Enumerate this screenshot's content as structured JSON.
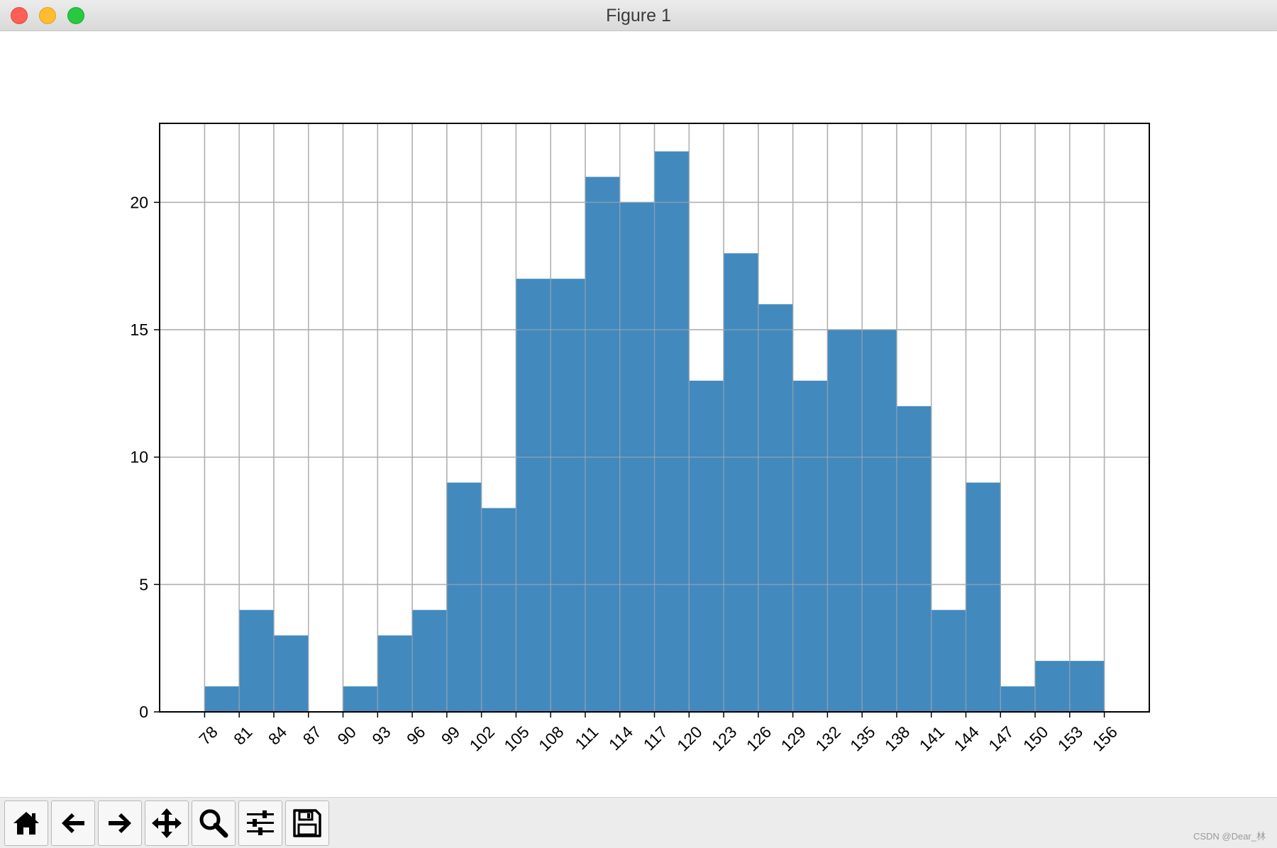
{
  "window": {
    "title": "Figure 1"
  },
  "toolbar": {
    "buttons": [
      {
        "name": "home",
        "icon": "home-icon"
      },
      {
        "name": "back",
        "icon": "arrow-left-icon"
      },
      {
        "name": "forward",
        "icon": "arrow-right-icon"
      },
      {
        "name": "pan",
        "icon": "move-icon"
      },
      {
        "name": "zoom",
        "icon": "magnifier-icon"
      },
      {
        "name": "configure-subplots",
        "icon": "sliders-icon"
      },
      {
        "name": "save",
        "icon": "floppy-disk-icon"
      }
    ]
  },
  "watermark": "CSDN @Dear_林",
  "colors": {
    "bar": "#4289be",
    "grid": "#b0b0b0",
    "axes": "#000000"
  },
  "chart_data": {
    "type": "bar",
    "histogram": true,
    "bin_edges": [
      78,
      81,
      84,
      87,
      90,
      93,
      96,
      99,
      102,
      105,
      108,
      111,
      114,
      117,
      120,
      123,
      126,
      129,
      132,
      135,
      138,
      141,
      144,
      147,
      150,
      153,
      156
    ],
    "values": [
      1,
      4,
      3,
      0,
      1,
      3,
      4,
      9,
      8,
      17,
      17,
      21,
      20,
      22,
      13,
      18,
      16,
      13,
      15,
      15,
      12,
      4,
      9,
      1,
      2,
      2
    ],
    "x_ticks": [
      "78",
      "81",
      "84",
      "87",
      "90",
      "93",
      "96",
      "99",
      "102",
      "105",
      "108",
      "111",
      "114",
      "117",
      "120",
      "123",
      "126",
      "129",
      "132",
      "135",
      "138",
      "141",
      "144",
      "147",
      "150",
      "153",
      "156"
    ],
    "y_ticks": [
      "0",
      "5",
      "10",
      "15",
      "20"
    ],
    "xlim": [
      74.1,
      159.9
    ],
    "ylim": [
      0,
      23.1
    ],
    "x_tick_rotation": 45,
    "grid": true,
    "title": "",
    "xlabel": "",
    "ylabel": ""
  }
}
